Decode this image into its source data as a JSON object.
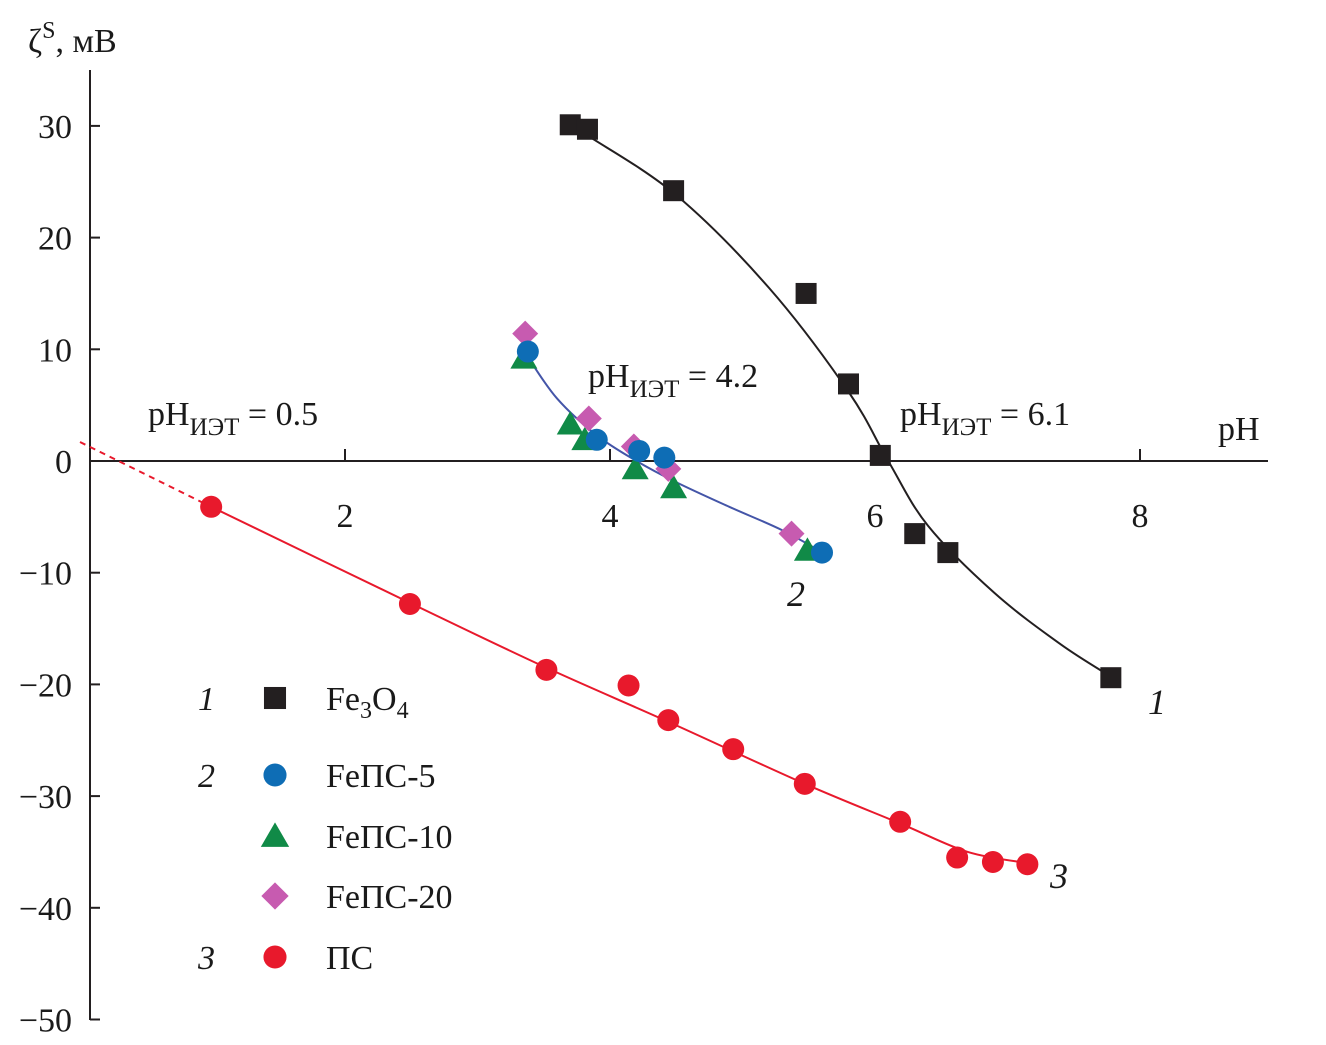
{
  "chart_data": {
    "type": "scatter",
    "xlabel": "pH",
    "ylabel": "ζ^S, мВ",
    "ylabel_parts": {
      "symbol": "ζ",
      "sup": "S",
      "unit": ", мВ"
    },
    "xlim": [
      -0.2,
      9.0
    ],
    "ylim": [
      -50,
      35
    ],
    "xticks": [
      2,
      4,
      6,
      8
    ],
    "yticks": [
      30,
      20,
      10,
      0,
      -10,
      -20,
      -30,
      -40,
      -50
    ],
    "ytick_labels": [
      "30",
      "20",
      "10",
      "0",
      "−10",
      "−20",
      "−30",
      "−40",
      "−50"
    ],
    "grid": false,
    "legend_position": "bottom-left",
    "legend": [
      {
        "num": "1",
        "label_parts": [
          "Fe",
          "3",
          "O",
          "4"
        ],
        "marker": "square",
        "color": "#231f20"
      },
      {
        "num": "2",
        "label": "FeПС-5",
        "marker": "circle",
        "color": "#0e6db5"
      },
      {
        "num": "",
        "label": "FeПС-10",
        "marker": "triangle",
        "color": "#108a47"
      },
      {
        "num": "",
        "label": "FeПС-20",
        "marker": "diamond",
        "color": "#c75bb0"
      },
      {
        "num": "3",
        "label": "ПС",
        "marker": "circle",
        "color": "#e8192c"
      }
    ],
    "iep_annotations": [
      {
        "text": "pH",
        "sub": "ИЭТ",
        "value": " = 0.5"
      },
      {
        "text": "pH",
        "sub": "ИЭТ",
        "value": " = 4.2"
      },
      {
        "text": "pH",
        "sub": "ИЭТ",
        "value": " = 6.1"
      }
    ],
    "curve_labels": [
      "1",
      "2",
      "3"
    ],
    "series": [
      {
        "id": "fe3o4",
        "marker": "square",
        "color": "#231f20",
        "points": [
          [
            3.7,
            30.1
          ],
          [
            3.83,
            29.7
          ],
          [
            4.48,
            24.2
          ],
          [
            5.48,
            15.0
          ],
          [
            5.8,
            6.9
          ],
          [
            6.04,
            0.5
          ],
          [
            6.3,
            -6.5
          ],
          [
            6.55,
            -8.2
          ],
          [
            7.78,
            -19.4
          ]
        ],
        "curve": [
          [
            3.85,
            29.0
          ],
          [
            4.5,
            23.8
          ],
          [
            5.2,
            15.5
          ],
          [
            5.8,
            6.2
          ],
          [
            6.1,
            0.0
          ],
          [
            6.4,
            -5.8
          ],
          [
            6.9,
            -11.8
          ],
          [
            7.4,
            -16.4
          ],
          [
            7.78,
            -19.3
          ]
        ],
        "curve_color": "#231f20"
      },
      {
        "id": "feps5",
        "marker": "circle",
        "color": "#0e6db5",
        "points": [
          [
            3.38,
            9.8
          ],
          [
            3.9,
            1.9
          ],
          [
            4.22,
            0.9
          ],
          [
            4.41,
            0.3
          ],
          [
            5.6,
            -8.2
          ]
        ]
      },
      {
        "id": "feps10",
        "marker": "triangle",
        "color": "#108a47",
        "points": [
          [
            3.35,
            9.2
          ],
          [
            3.7,
            3.3
          ],
          [
            3.81,
            1.9
          ],
          [
            4.19,
            -0.7
          ],
          [
            4.48,
            -2.4
          ],
          [
            5.49,
            -8.0
          ]
        ]
      },
      {
        "id": "feps20",
        "marker": "diamond",
        "color": "#c75bb0",
        "points": [
          [
            3.36,
            11.4
          ],
          [
            3.84,
            3.8
          ],
          [
            4.18,
            1.3
          ],
          [
            4.44,
            -0.7
          ],
          [
            5.37,
            -6.5
          ]
        ],
        "curve": [
          [
            3.38,
            9.3
          ],
          [
            3.6,
            5.6
          ],
          [
            3.9,
            2.3
          ],
          [
            4.2,
            0.0
          ],
          [
            4.5,
            -1.9
          ],
          [
            4.9,
            -4.1
          ],
          [
            5.3,
            -6.2
          ],
          [
            5.62,
            -8.3
          ]
        ],
        "curve_color": "#4455a8"
      },
      {
        "id": "ps",
        "marker": "circle",
        "color": "#e8192c",
        "points": [
          [
            0.99,
            -4.1
          ],
          [
            2.49,
            -12.8
          ],
          [
            3.52,
            -18.7
          ],
          [
            4.14,
            -20.1
          ],
          [
            4.44,
            -23.2
          ],
          [
            4.93,
            -25.8
          ],
          [
            5.47,
            -28.9
          ],
          [
            6.19,
            -32.3
          ],
          [
            6.62,
            -35.5
          ],
          [
            6.89,
            -35.9
          ],
          [
            7.15,
            -36.1
          ]
        ],
        "curve": [
          [
            0.99,
            -4.1
          ],
          [
            2.49,
            -12.7
          ],
          [
            3.5,
            -18.4
          ],
          [
            4.45,
            -23.4
          ],
          [
            5.47,
            -28.9
          ],
          [
            6.2,
            -32.5
          ],
          [
            6.7,
            -35.0
          ],
          [
            7.15,
            -36.0
          ]
        ],
        "curve_color": "#e8192c",
        "extrapolation": [
          [
            0.0,
            1.7
          ],
          [
            0.99,
            -4.1
          ]
        ]
      }
    ]
  }
}
